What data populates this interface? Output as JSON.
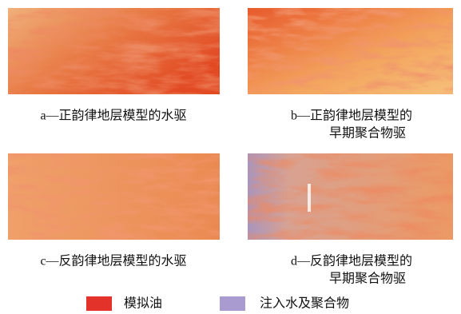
{
  "panels": [
    {
      "caption": [
        "a—正韵律地层模型的水驱"
      ]
    },
    {
      "caption": [
        "b—正韵律地层模型的",
        "早期聚合物驱"
      ]
    },
    {
      "caption": [
        "c—反韵律地层模型的水驱"
      ]
    },
    {
      "caption": [
        "d—反韵律地层模型的",
        "早期聚合物驱"
      ]
    }
  ],
  "legend": [
    {
      "label": "模拟油"
    },
    {
      "label": "注入水及聚合物"
    }
  ]
}
